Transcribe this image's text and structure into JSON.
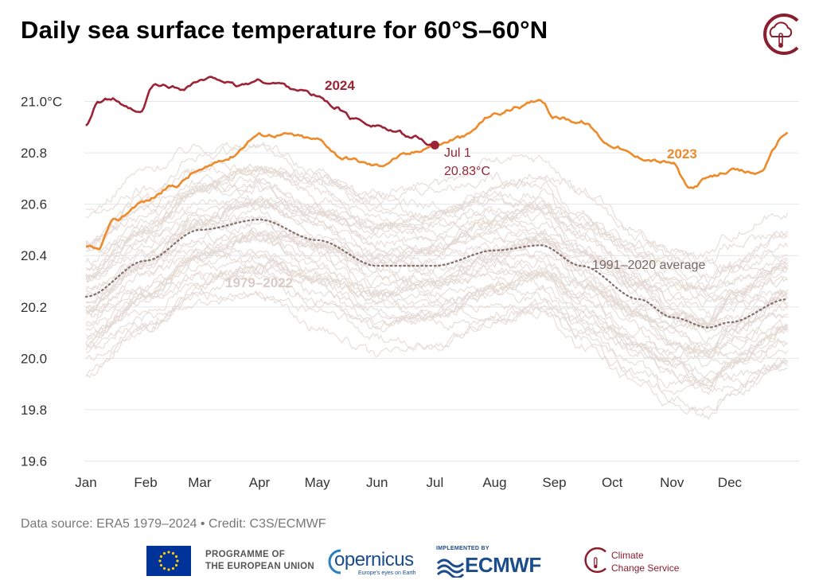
{
  "title": "Daily sea surface temperature for 60°S–60°N",
  "source_text": "Data source: ERA5 1979–2024 • Credit: C3S/ECMWF",
  "footer": {
    "eu_line1": "PROGRAMME OF",
    "eu_line2": "THE EUROPEAN UNION",
    "copernicus_name": "opernicus",
    "copernicus_tagline": "Europe's eyes on Earth",
    "ecmwf_implemented": "IMPLEMENTED BY",
    "ecmwf_name": "ECMWF",
    "c3s_line1": "Climate",
    "c3s_line2": "Change Service"
  },
  "colors": {
    "y2024": "#9b2335",
    "y2023": "#ee8a2a",
    "average": "#8a7470",
    "historical": "#e3d8d3",
    "grid": "#e6e6e6"
  },
  "chart_data": {
    "type": "line",
    "title": "Daily sea surface temperature for 60°S–60°N",
    "ylim": [
      19.6,
      21.1
    ],
    "y_ticks": [
      "21.0°C",
      "20.8",
      "20.6",
      "20.4",
      "20.2",
      "20.0",
      "19.8",
      "19.6"
    ],
    "y_tick_values": [
      21.0,
      20.8,
      20.6,
      20.4,
      20.2,
      20.0,
      19.8,
      19.6
    ],
    "months": [
      "Jan",
      "Feb",
      "Mar",
      "Apr",
      "May",
      "Jun",
      "Jul",
      "Aug",
      "Sep",
      "Oct",
      "Nov",
      "Dec"
    ],
    "grid": true,
    "series": [
      {
        "name": "2024",
        "x": [
          "Jan 1",
          "Jan 7",
          "Jan 15",
          "Jan 22",
          "Jan 29",
          "Feb 5",
          "Feb 12",
          "Feb 19",
          "Mar 1",
          "Mar 10",
          "Mar 20",
          "Apr 1",
          "Apr 10",
          "Apr 20",
          "May 1",
          "May 10",
          "May 20",
          "Jun 1",
          "Jun 10",
          "Jun 20",
          "Jul 1"
        ],
        "y": [
          20.91,
          21.0,
          21.01,
          20.97,
          20.95,
          21.06,
          21.06,
          21.05,
          21.08,
          21.09,
          21.06,
          21.08,
          21.07,
          21.05,
          21.02,
          20.98,
          20.93,
          20.91,
          20.88,
          20.86,
          20.83
        ]
      },
      {
        "name": "2023",
        "x": [
          "Jan 1",
          "Jan 7",
          "Jan 15",
          "Jan 31",
          "Feb 15",
          "Mar 1",
          "Mar 15",
          "Apr 1",
          "Apr 15",
          "May 1",
          "May 15",
          "Jun 1",
          "Jun 15",
          "Jul 1",
          "Jul 15",
          "Aug 1",
          "Aug 15",
          "Aug 25",
          "Sep 1",
          "Sep 15",
          "Oct 1",
          "Oct 15",
          "Nov 1",
          "Nov 10",
          "Nov 20",
          "Dec 1",
          "Dec 15",
          "Dec 31"
        ],
        "y": [
          20.43,
          20.42,
          20.53,
          20.61,
          20.67,
          20.73,
          20.78,
          20.87,
          20.87,
          20.85,
          20.78,
          20.75,
          20.79,
          20.83,
          20.86,
          20.95,
          20.98,
          21.01,
          20.94,
          20.92,
          20.83,
          20.78,
          20.76,
          20.66,
          20.7,
          20.73,
          20.72,
          20.88
        ]
      },
      {
        "name": "1991–2020 average",
        "x": [
          "Jan 1",
          "Feb 1",
          "Mar 1",
          "Apr 1",
          "May 1",
          "Jun 1",
          "Jul 1",
          "Aug 1",
          "Aug 25",
          "Sep 15",
          "Oct 15",
          "Nov 1",
          "Nov 20",
          "Dec 1",
          "Dec 31"
        ],
        "y": [
          20.24,
          20.38,
          20.5,
          20.54,
          20.46,
          20.36,
          20.36,
          20.42,
          20.44,
          20.36,
          20.23,
          20.16,
          20.12,
          20.14,
          20.23
        ]
      }
    ],
    "historical_range_label": "1979–2022",
    "annotation": {
      "line1": "Jul 1",
      "line2": "20.83°C",
      "value": 20.83
    }
  }
}
